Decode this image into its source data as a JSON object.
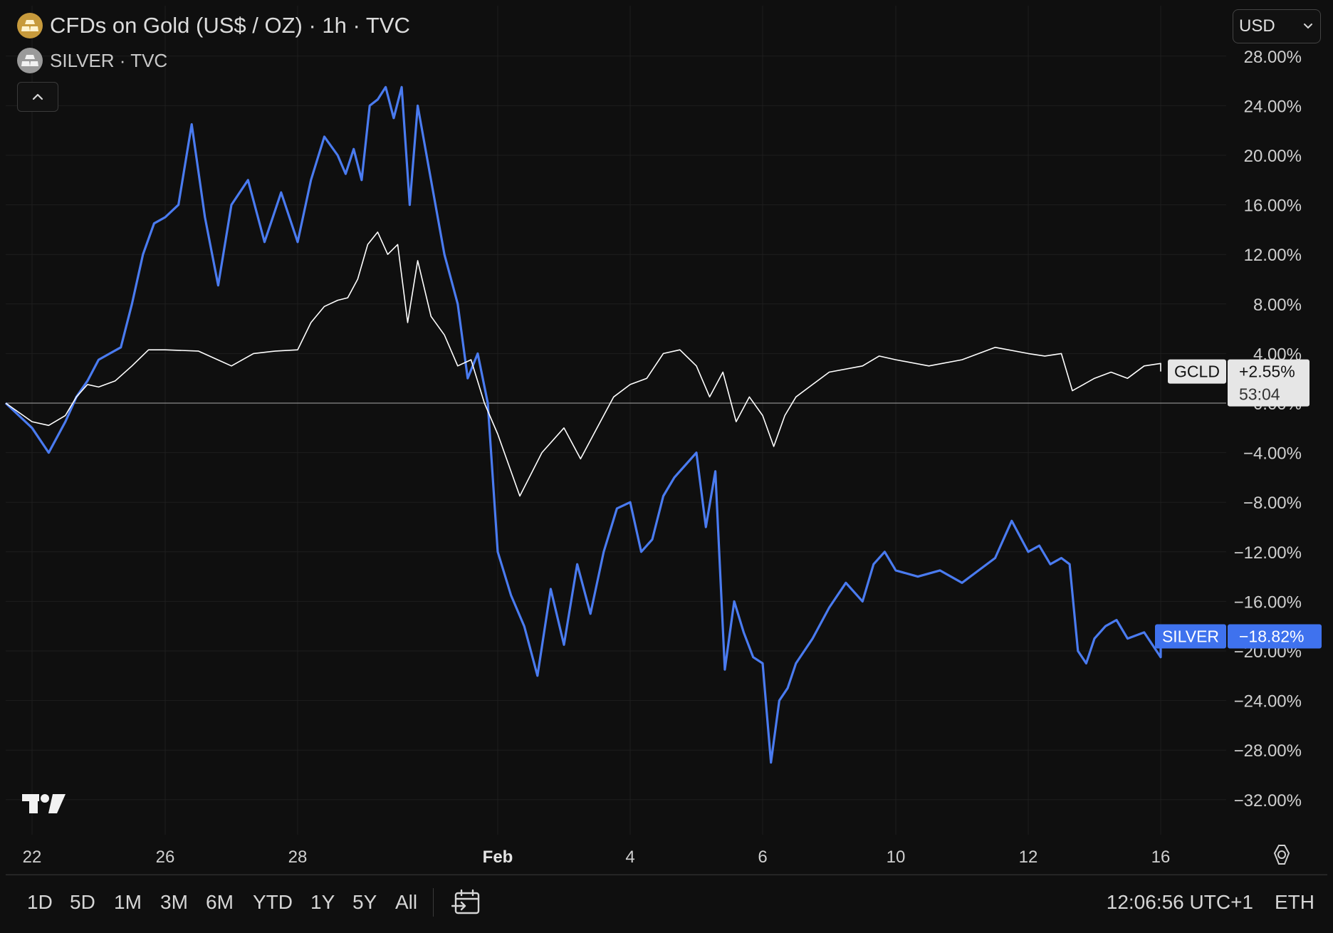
{
  "header": {
    "main_symbol": "CFDs on Gold (US$ / OZ) · 1h · TVC",
    "compare_symbol": "SILVER · TVC",
    "currency": "USD"
  },
  "footer": {
    "ranges": [
      "1D",
      "5D",
      "1M",
      "3M",
      "6M",
      "YTD",
      "1Y",
      "5Y",
      "All"
    ],
    "clock": "12:06:56 UTC+1",
    "session": "ETH"
  },
  "colors": {
    "background": "#0f0f0f",
    "gold_line": "#ffffff",
    "silver_line": "#4a7bf0",
    "silver_tag": "#3f72ee",
    "gold_tag": "#e6e6e6",
    "axis_text": "#d0d0d0",
    "grid": "#1e1e1e"
  },
  "icons": {
    "gold_symbol": "gold-bars-icon",
    "silver_symbol": "silver-bars-icon",
    "collapse": "chevron-up-icon",
    "currency_dropdown": "chevron-down-icon",
    "settings": "gear-icon",
    "date_range": "calendar-range-icon",
    "logo": "tradingview-logo"
  },
  "chart_data": {
    "type": "line",
    "y_unit": "% change",
    "ylim": [
      -35,
      30
    ],
    "y_ticks": [
      "28.00%",
      "24.00%",
      "20.00%",
      "16.00%",
      "12.00%",
      "8.00%",
      "4.00%",
      "0.00%",
      "−4.00%",
      "−8.00%",
      "−12.00%",
      "−16.00%",
      "−20.00%",
      "−24.00%",
      "−28.00%",
      "−32.00%"
    ],
    "y_tick_values": [
      28,
      24,
      20,
      16,
      12,
      8,
      4,
      0,
      -4,
      -8,
      -12,
      -16,
      -20,
      -24,
      -28,
      -32
    ],
    "x_ticks": [
      {
        "label": "22",
        "date": "Jan 22"
      },
      {
        "label": "26",
        "date": "Jan 26"
      },
      {
        "label": "28",
        "date": "Jan 28"
      },
      {
        "label": "Feb",
        "date": "Feb 2",
        "bold": true
      },
      {
        "label": "4",
        "date": "Feb 4"
      },
      {
        "label": "6",
        "date": "Feb 6"
      },
      {
        "label": "10",
        "date": "Feb 10"
      },
      {
        "label": "12",
        "date": "Feb 12"
      },
      {
        "label": "16",
        "date": "Feb 16"
      }
    ],
    "grid": true,
    "series": [
      {
        "name": "GCLD",
        "tag_label": "GCLD",
        "tag_value": "+2.55%",
        "countdown": "53:04",
        "last_value": 2.55,
        "points": [
          [
            "Jan 21",
            0.0
          ],
          [
            "Jan 22",
            -1.5
          ],
          [
            "Jan 22",
            -1.8
          ],
          [
            "Jan 23",
            -1.0
          ],
          [
            "Jan 23",
            0.5
          ],
          [
            "Jan 23",
            1.5
          ],
          [
            "Jan 24",
            1.3
          ],
          [
            "Jan 24",
            1.8
          ],
          [
            "Jan 25",
            3.0
          ],
          [
            "Jan 25",
            4.3
          ],
          [
            "Jan 26",
            4.3
          ],
          [
            "Jan 26",
            4.2
          ],
          [
            "Jan 27",
            3.0
          ],
          [
            "Jan 27",
            4.0
          ],
          [
            "Jan 27",
            4.2
          ],
          [
            "Jan 28",
            4.3
          ],
          [
            "Jan 28",
            6.5
          ],
          [
            "Jan 28",
            7.8
          ],
          [
            "Jan 29",
            8.3
          ],
          [
            "Jan 29",
            8.5
          ],
          [
            "Jan 29",
            10.0
          ],
          [
            "Jan 29",
            12.8
          ],
          [
            "Jan 30",
            13.8
          ],
          [
            "Jan 30",
            12.0
          ],
          [
            "Jan 30",
            12.8
          ],
          [
            "Jan 30",
            6.5
          ],
          [
            "Jan 31",
            11.5
          ],
          [
            "Jan 31",
            7.0
          ],
          [
            "Jan 31",
            5.5
          ],
          [
            "Feb 1",
            3.0
          ],
          [
            "Feb 1",
            3.5
          ],
          [
            "Feb 1",
            0.0
          ],
          [
            "Feb 2",
            -2.5
          ],
          [
            "Feb 2",
            -7.5
          ],
          [
            "Feb 2",
            -4.0
          ],
          [
            "Feb 3",
            -2.0
          ],
          [
            "Feb 3",
            -4.5
          ],
          [
            "Feb 3",
            -2.0
          ],
          [
            "Feb 3",
            0.5
          ],
          [
            "Feb 4",
            1.5
          ],
          [
            "Feb 4",
            2.0
          ],
          [
            "Feb 4",
            4.0
          ],
          [
            "Feb 4",
            4.3
          ],
          [
            "Feb 5",
            3.0
          ],
          [
            "Feb 5",
            0.5
          ],
          [
            "Feb 5",
            2.5
          ],
          [
            "Feb 5",
            -1.5
          ],
          [
            "Feb 5",
            0.5
          ],
          [
            "Feb 6",
            -1.0
          ],
          [
            "Feb 6",
            -3.5
          ],
          [
            "Feb 6",
            -1.0
          ],
          [
            "Feb 7",
            0.5
          ],
          [
            "Feb 7",
            1.5
          ],
          [
            "Feb 8",
            2.5
          ],
          [
            "Feb 9",
            3.0
          ],
          [
            "Feb 9",
            3.8
          ],
          [
            "Feb 10",
            3.5
          ],
          [
            "Feb 10",
            3.0
          ],
          [
            "Feb 11",
            3.5
          ],
          [
            "Feb 11",
            4.5
          ],
          [
            "Feb 12",
            4.0
          ],
          [
            "Feb 12",
            3.8
          ],
          [
            "Feb 13",
            4.0
          ],
          [
            "Feb 13",
            1.0
          ],
          [
            "Feb 13",
            1.5
          ],
          [
            "Feb 14",
            2.0
          ],
          [
            "Feb 14",
            2.5
          ],
          [
            "Feb 15",
            2.0
          ],
          [
            "Feb 15",
            3.0
          ],
          [
            "Feb 16",
            3.2
          ],
          [
            "Feb 16",
            2.55
          ]
        ]
      },
      {
        "name": "SILVER",
        "tag_label": "SILVER",
        "tag_value": "−18.82%",
        "last_value": -18.82,
        "points": [
          [
            "Jan 21",
            0.0
          ],
          [
            "Jan 22",
            -2.0
          ],
          [
            "Jan 22",
            -4.0
          ],
          [
            "Jan 23",
            -1.5
          ],
          [
            "Jan 23",
            0.5
          ],
          [
            "Jan 23",
            1.8
          ],
          [
            "Jan 24",
            3.5
          ],
          [
            "Jan 24",
            4.0
          ],
          [
            "Jan 24",
            4.5
          ],
          [
            "Jan 25",
            8.0
          ],
          [
            "Jan 25",
            12.0
          ],
          [
            "Jan 25",
            14.5
          ],
          [
            "Jan 26",
            15.0
          ],
          [
            "Jan 26",
            16.0
          ],
          [
            "Jan 26",
            22.5
          ],
          [
            "Jan 26",
            15.0
          ],
          [
            "Jan 26",
            9.5
          ],
          [
            "Jan 27",
            16.0
          ],
          [
            "Jan 27",
            18.0
          ],
          [
            "Jan 27",
            13.0
          ],
          [
            "Jan 27",
            17.0
          ],
          [
            "Jan 28",
            13.0
          ],
          [
            "Jan 28",
            18.0
          ],
          [
            "Jan 28",
            21.5
          ],
          [
            "Jan 29",
            20.0
          ],
          [
            "Jan 29",
            18.5
          ],
          [
            "Jan 29",
            20.5
          ],
          [
            "Jan 29",
            18.0
          ],
          [
            "Jan 29",
            24.0
          ],
          [
            "Jan 30",
            24.5
          ],
          [
            "Jan 30",
            25.5
          ],
          [
            "Jan 30",
            23.0
          ],
          [
            "Jan 30",
            25.5
          ],
          [
            "Jan 30",
            16.0
          ],
          [
            "Jan 31",
            24.0
          ],
          [
            "Jan 31",
            18.0
          ],
          [
            "Jan 31",
            12.0
          ],
          [
            "Feb 1",
            8.0
          ],
          [
            "Feb 1",
            2.0
          ],
          [
            "Feb 1",
            4.0
          ],
          [
            "Feb 1",
            0.0
          ],
          [
            "Feb 2",
            -12.0
          ],
          [
            "Feb 2",
            -15.5
          ],
          [
            "Feb 2",
            -18.0
          ],
          [
            "Feb 2",
            -22.0
          ],
          [
            "Feb 2",
            -15.0
          ],
          [
            "Feb 3",
            -19.5
          ],
          [
            "Feb 3",
            -13.0
          ],
          [
            "Feb 3",
            -17.0
          ],
          [
            "Feb 3",
            -12.0
          ],
          [
            "Feb 3",
            -8.5
          ],
          [
            "Feb 4",
            -8.0
          ],
          [
            "Feb 4",
            -12.0
          ],
          [
            "Feb 4",
            -11.0
          ],
          [
            "Feb 4",
            -7.5
          ],
          [
            "Feb 4",
            -6.0
          ],
          [
            "Feb 4",
            -5.0
          ],
          [
            "Feb 5",
            -4.0
          ],
          [
            "Feb 5",
            -10.0
          ],
          [
            "Feb 5",
            -5.5
          ],
          [
            "Feb 5",
            -21.5
          ],
          [
            "Feb 5",
            -16.0
          ],
          [
            "Feb 5",
            -18.5
          ],
          [
            "Feb 5",
            -20.5
          ],
          [
            "Feb 6",
            -21.0
          ],
          [
            "Feb 6",
            -29.0
          ],
          [
            "Feb 6",
            -24.0
          ],
          [
            "Feb 6",
            -23.0
          ],
          [
            "Feb 7",
            -21.0
          ],
          [
            "Feb 7",
            -19.0
          ],
          [
            "Feb 8",
            -16.5
          ],
          [
            "Feb 8",
            -14.5
          ],
          [
            "Feb 9",
            -16.0
          ],
          [
            "Feb 9",
            -13.0
          ],
          [
            "Feb 9",
            -12.0
          ],
          [
            "Feb 10",
            -13.5
          ],
          [
            "Feb 10",
            -14.0
          ],
          [
            "Feb 10",
            -13.5
          ],
          [
            "Feb 11",
            -14.5
          ],
          [
            "Feb 11",
            -13.5
          ],
          [
            "Feb 11",
            -12.5
          ],
          [
            "Feb 11",
            -9.5
          ],
          [
            "Feb 12",
            -12.0
          ],
          [
            "Feb 12",
            -11.5
          ],
          [
            "Feb 12",
            -13.0
          ],
          [
            "Feb 13",
            -12.5
          ],
          [
            "Feb 13",
            -13.0
          ],
          [
            "Feb 13",
            -20.0
          ],
          [
            "Feb 13",
            -21.0
          ],
          [
            "Feb 14",
            -19.0
          ],
          [
            "Feb 14",
            -18.0
          ],
          [
            "Feb 14",
            -17.5
          ],
          [
            "Feb 15",
            -19.0
          ],
          [
            "Feb 15",
            -18.5
          ],
          [
            "Feb 16",
            -20.5
          ],
          [
            "Feb 16",
            -18.82
          ]
        ]
      }
    ]
  }
}
